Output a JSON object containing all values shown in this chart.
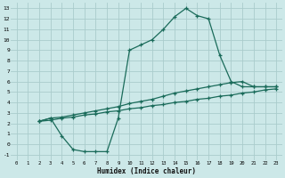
{
  "xlabel": "Humidex (Indice chaleur)",
  "bg_color": "#cce8e8",
  "grid_color": "#aacccc",
  "line_color": "#1a6b5a",
  "xlim": [
    -0.5,
    23.5
  ],
  "ylim": [
    -1.5,
    13.5
  ],
  "xticks": [
    0,
    1,
    2,
    3,
    4,
    5,
    6,
    7,
    8,
    9,
    10,
    11,
    12,
    13,
    14,
    15,
    16,
    17,
    18,
    19,
    20,
    21,
    22,
    23
  ],
  "yticks": [
    -1,
    0,
    1,
    2,
    3,
    4,
    5,
    6,
    7,
    8,
    9,
    10,
    11,
    12,
    13
  ],
  "line1_x": [
    2,
    3,
    4,
    5,
    6,
    7,
    8,
    9,
    10,
    11,
    12,
    13,
    14,
    15,
    16,
    17,
    18,
    19,
    20,
    21,
    22,
    23
  ],
  "line1_y": [
    2.2,
    2.5,
    0.8,
    -0.5,
    -0.7,
    -0.7,
    -0.7,
    2.5,
    9.0,
    9.5,
    10.0,
    11.0,
    12.2,
    13.0,
    12.3,
    12.0,
    8.5,
    6.0,
    5.5,
    5.5,
    5.5,
    5.5
  ],
  "line2_x": [
    2,
    3,
    4,
    5,
    6,
    7,
    8,
    9,
    10,
    11,
    12,
    13,
    14,
    15,
    16,
    17,
    18,
    19,
    20,
    21,
    22,
    23
  ],
  "line2_y": [
    2.2,
    2.5,
    2.6,
    2.8,
    3.0,
    3.2,
    3.4,
    3.6,
    3.9,
    4.1,
    4.3,
    4.6,
    4.9,
    5.1,
    5.3,
    5.5,
    5.7,
    5.9,
    6.0,
    5.5,
    5.5,
    5.5
  ],
  "line3_x": [
    2,
    3,
    4,
    5,
    6,
    7,
    8,
    9,
    10,
    11,
    12,
    13,
    14,
    15,
    16,
    17,
    18,
    19,
    20,
    21,
    22,
    23
  ],
  "line3_y": [
    2.2,
    2.3,
    2.5,
    2.6,
    2.8,
    2.9,
    3.1,
    3.2,
    3.4,
    3.5,
    3.7,
    3.8,
    4.0,
    4.1,
    4.3,
    4.4,
    4.6,
    4.7,
    4.9,
    5.0,
    5.2,
    5.3
  ]
}
